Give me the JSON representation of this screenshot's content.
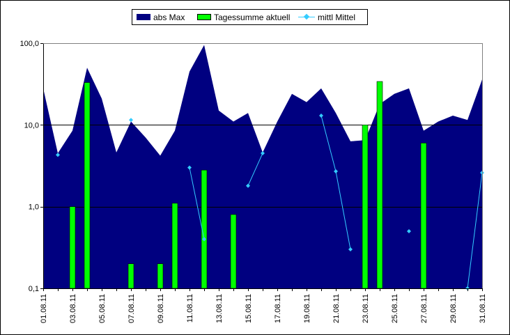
{
  "chart_data": {
    "type": "area",
    "scale": "log",
    "ylim": [
      0.1,
      100
    ],
    "yticks": [
      "0,1",
      "1,0",
      "10,0",
      "100,0"
    ],
    "ytick_values": [
      0.1,
      1,
      10,
      100
    ],
    "gridlines": true,
    "legend_position": "top",
    "x": [
      "01.08.11",
      "02.08.11",
      "03.08.11",
      "04.08.11",
      "05.08.11",
      "06.08.11",
      "07.08.11",
      "08.08.11",
      "09.08.11",
      "10.08.11",
      "11.08.11",
      "12.08.11",
      "13.08.11",
      "14.08.11",
      "15.08.11",
      "16.08.11",
      "17.08.11",
      "18.08.11",
      "19.08.11",
      "20.08.11",
      "21.08.11",
      "22.08.11",
      "23.08.11",
      "24.08.11",
      "25.08.11",
      "26.08.11",
      "27.08.11",
      "28.08.11",
      "29.08.11",
      "30.08.11",
      "31.08.11"
    ],
    "xtick_labels": [
      "01.08.11",
      "03.08.11",
      "05.08.11",
      "07.08.11",
      "09.08.11",
      "11.08.11",
      "13.08.11",
      "15.08.11",
      "17.08.11",
      "19.08.11",
      "21.08.11",
      "23.08.11",
      "25.08.11",
      "27.08.11",
      "29.08.11",
      "31.08.11"
    ],
    "series": [
      {
        "name": "abs Max",
        "type": "area",
        "color": "#000080",
        "values": [
          28,
          4.5,
          8.5,
          50,
          21,
          4.6,
          11,
          7,
          4.2,
          8.5,
          45,
          95,
          15,
          11,
          14,
          4.6,
          11,
          24,
          19,
          28,
          14,
          6.3,
          6.5,
          18,
          24,
          28,
          8.5,
          11,
          13,
          11.5,
          36
        ]
      },
      {
        "name": "Tagessumme aktuell",
        "type": "bar",
        "color": "#00ff00",
        "values": [
          null,
          null,
          1.0,
          33,
          null,
          null,
          0.2,
          null,
          0.2,
          1.1,
          null,
          2.8,
          null,
          0.8,
          null,
          null,
          null,
          null,
          null,
          null,
          null,
          null,
          10,
          34,
          null,
          null,
          6,
          null,
          null,
          null,
          null
        ]
      },
      {
        "name": "mittl Mittel",
        "type": "line",
        "color": "#33ccff",
        "values": [
          null,
          4.3,
          null,
          null,
          null,
          null,
          11.5,
          null,
          null,
          null,
          3.0,
          0.4,
          null,
          null,
          1.8,
          4.5,
          null,
          null,
          null,
          13,
          2.7,
          0.3,
          null,
          null,
          null,
          0.5,
          null,
          null,
          null,
          0.1,
          2.6
        ]
      }
    ]
  }
}
